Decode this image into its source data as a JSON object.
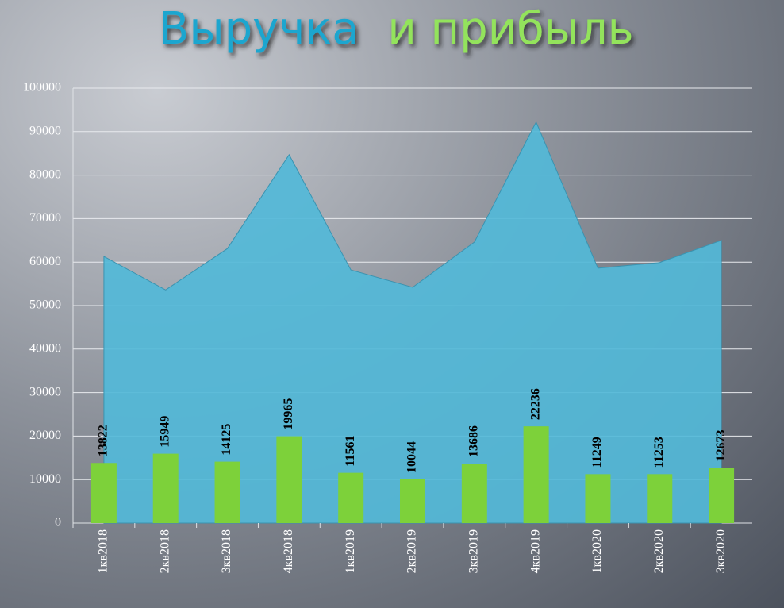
{
  "chart_data": {
    "type": "area_bar",
    "title": [
      {
        "text": "Выручка",
        "color": "#1fa6cf"
      },
      {
        "text": "и прибыль",
        "color": "#93e35c"
      }
    ],
    "categories": [
      "1кв2018",
      "2кв2018",
      "3кв2018",
      "4кв2018",
      "1кв2019",
      "2кв2019",
      "3кв2019",
      "4кв2019",
      "1кв2020",
      "2кв2020",
      "3кв2020"
    ],
    "series": [
      {
        "type": "area",
        "color": "#52b8d8",
        "values": [
          61300,
          53600,
          63100,
          84700,
          58200,
          54200,
          64600,
          92200,
          58600,
          59900,
          65000
        ]
      },
      {
        "type": "bar",
        "color": "#7dd13a",
        "values": [
          13822,
          15949,
          14125,
          19965,
          11561,
          10044,
          13686,
          22236,
          11249,
          11253,
          12673
        ]
      }
    ],
    "ylim": [
      0,
      100000
    ],
    "yticks": [
      0,
      10000,
      20000,
      30000,
      40000,
      50000,
      60000,
      70000,
      80000,
      90000,
      100000
    ],
    "grid": true
  }
}
